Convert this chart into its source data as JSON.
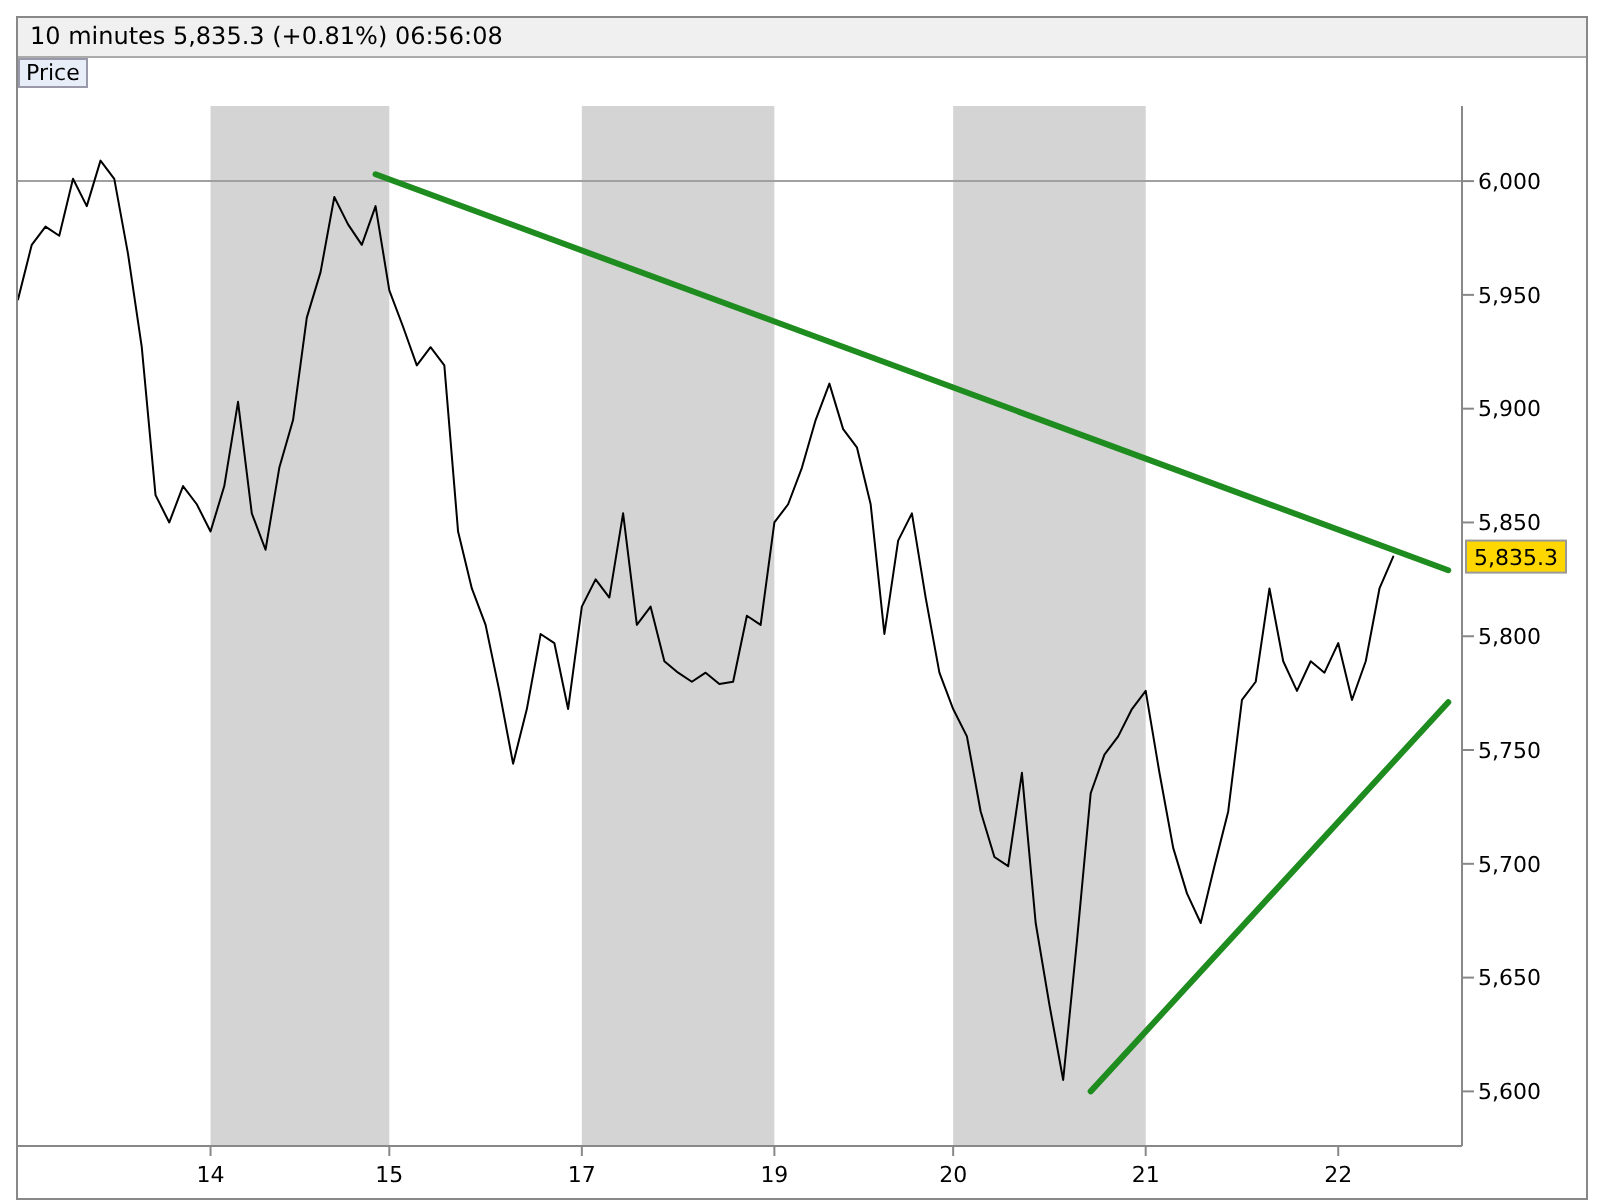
{
  "chart_data": {
    "type": "line",
    "title": "10 minutes   5,835.3 (+0.81%)   06:56:08",
    "annotations": [
      "Price",
      "5,835.3"
    ],
    "categories": [
      null,
      null,
      null,
      null,
      null,
      null,
      null,
      null,
      null,
      null,
      null,
      null,
      null,
      null,
      "14",
      null,
      null,
      null,
      null,
      null,
      null,
      null,
      null,
      null,
      null,
      null,
      null,
      "15",
      null,
      null,
      null,
      null,
      null,
      null,
      null,
      null,
      null,
      null,
      null,
      null,
      null,
      "17",
      null,
      null,
      null,
      null,
      null,
      null,
      null,
      null,
      null,
      null,
      null,
      null,
      null,
      "19",
      null,
      null,
      null,
      null,
      null,
      null,
      null,
      null,
      null,
      null,
      null,
      null,
      "20",
      null,
      null,
      null,
      null,
      null,
      null,
      null,
      null,
      null,
      null,
      null,
      null,
      null,
      "21",
      null,
      null,
      null,
      null,
      null,
      null,
      null,
      null,
      null,
      null,
      null,
      null,
      null,
      "22",
      null,
      null,
      null,
      null,
      null,
      null,
      null,
      null,
      null
    ],
    "ylim": [
      5576,
      6033
    ],
    "yticks": [
      {
        "value": 5600,
        "label": "5,600"
      },
      {
        "value": 5650,
        "label": "5,650"
      },
      {
        "value": 5700,
        "label": "5,700"
      },
      {
        "value": 5750,
        "label": "5,750"
      },
      {
        "value": 5800,
        "label": "5,800"
      },
      {
        "value": 5850,
        "label": "5,850"
      },
      {
        "value": 5900,
        "label": "5,900"
      },
      {
        "value": 5950,
        "label": "5,950"
      },
      {
        "value": 6000,
        "label": "6,000"
      }
    ],
    "grid": false,
    "marker": "none",
    "line_style": "solid",
    "ref_lines": [
      {
        "axis": "y",
        "value": 6000,
        "color": "#a0a0a0"
      }
    ],
    "bands": [
      {
        "axis": "x",
        "from": "14",
        "to": "15",
        "color": "#d4d4d4"
      },
      {
        "axis": "x",
        "from": "17",
        "to": "19",
        "color": "#d4d4d4"
      },
      {
        "axis": "x",
        "from": "20",
        "to": "21",
        "color": "#d4d4d4"
      }
    ],
    "series": [
      {
        "color": "#000000",
        "values": [
          5948,
          5972,
          5980,
          5976,
          6001,
          5989,
          6009,
          6001,
          5968,
          5927,
          5862,
          5850,
          5866,
          5858,
          5846,
          5866,
          5903,
          5854,
          5838,
          5874,
          5895,
          5940,
          5960,
          5993,
          5981,
          5972,
          5989,
          5952,
          5936,
          5919,
          5927,
          5919,
          5846,
          5821,
          5805,
          5776,
          5744,
          5768,
          5801,
          5797,
          5768,
          5813,
          5825,
          5817,
          5854,
          5805,
          5813,
          5789,
          5784,
          5780,
          5784,
          5779,
          5780,
          5809,
          5805,
          5850,
          5858,
          5874,
          5895,
          5911,
          5891,
          5883,
          5858,
          5801,
          5842,
          5854,
          5817,
          5784,
          5768,
          5756,
          5723,
          5703,
          5699,
          5740,
          5674,
          5638,
          5605,
          5666,
          5731,
          5748,
          5756,
          5768,
          5776,
          5740,
          5707,
          5687,
          5674,
          5699,
          5723,
          5772,
          5780,
          5821,
          5789,
          5776,
          5789,
          5784,
          5797,
          5772,
          5789,
          5821,
          5835,
          null,
          null,
          null,
          null,
          null
        ]
      },
      {
        "type": "line",
        "color": "#1e8c1e",
        "values": [
          null,
          null,
          null,
          null,
          null,
          null,
          null,
          null,
          null,
          null,
          null,
          null,
          null,
          null,
          null,
          null,
          null,
          null,
          null,
          null,
          null,
          null,
          null,
          null,
          null,
          null,
          6003,
          null,
          null,
          null,
          null,
          null,
          null,
          null,
          null,
          null,
          null,
          null,
          null,
          null,
          null,
          null,
          null,
          null,
          null,
          null,
          null,
          null,
          null,
          null,
          null,
          null,
          null,
          null,
          null,
          null,
          null,
          null,
          null,
          null,
          null,
          null,
          null,
          null,
          null,
          null,
          null,
          null,
          null,
          null,
          null,
          null,
          null,
          null,
          null,
          null,
          null,
          null,
          null,
          null,
          null,
          null,
          null,
          null,
          null,
          null,
          null,
          null,
          null,
          null,
          null,
          null,
          null,
          null,
          null,
          null,
          null,
          null,
          null,
          null,
          null,
          null,
          null,
          null,
          5829,
          null
        ]
      },
      {
        "type": "line",
        "color": "#1e8c1e",
        "values": [
          null,
          null,
          null,
          null,
          null,
          null,
          null,
          null,
          null,
          null,
          null,
          null,
          null,
          null,
          null,
          null,
          null,
          null,
          null,
          null,
          null,
          null,
          null,
          null,
          null,
          null,
          null,
          null,
          null,
          null,
          null,
          null,
          null,
          null,
          null,
          null,
          null,
          null,
          null,
          null,
          null,
          null,
          null,
          null,
          null,
          null,
          null,
          null,
          null,
          null,
          null,
          null,
          null,
          null,
          null,
          null,
          null,
          null,
          null,
          null,
          null,
          null,
          null,
          null,
          null,
          null,
          null,
          null,
          null,
          null,
          null,
          null,
          null,
          null,
          null,
          null,
          null,
          null,
          5600,
          null,
          null,
          null,
          null,
          null,
          null,
          null,
          null,
          null,
          null,
          null,
          null,
          null,
          null,
          null,
          null,
          null,
          null,
          null,
          null,
          null,
          null,
          null,
          null,
          null,
          5771,
          null
        ]
      }
    ]
  }
}
